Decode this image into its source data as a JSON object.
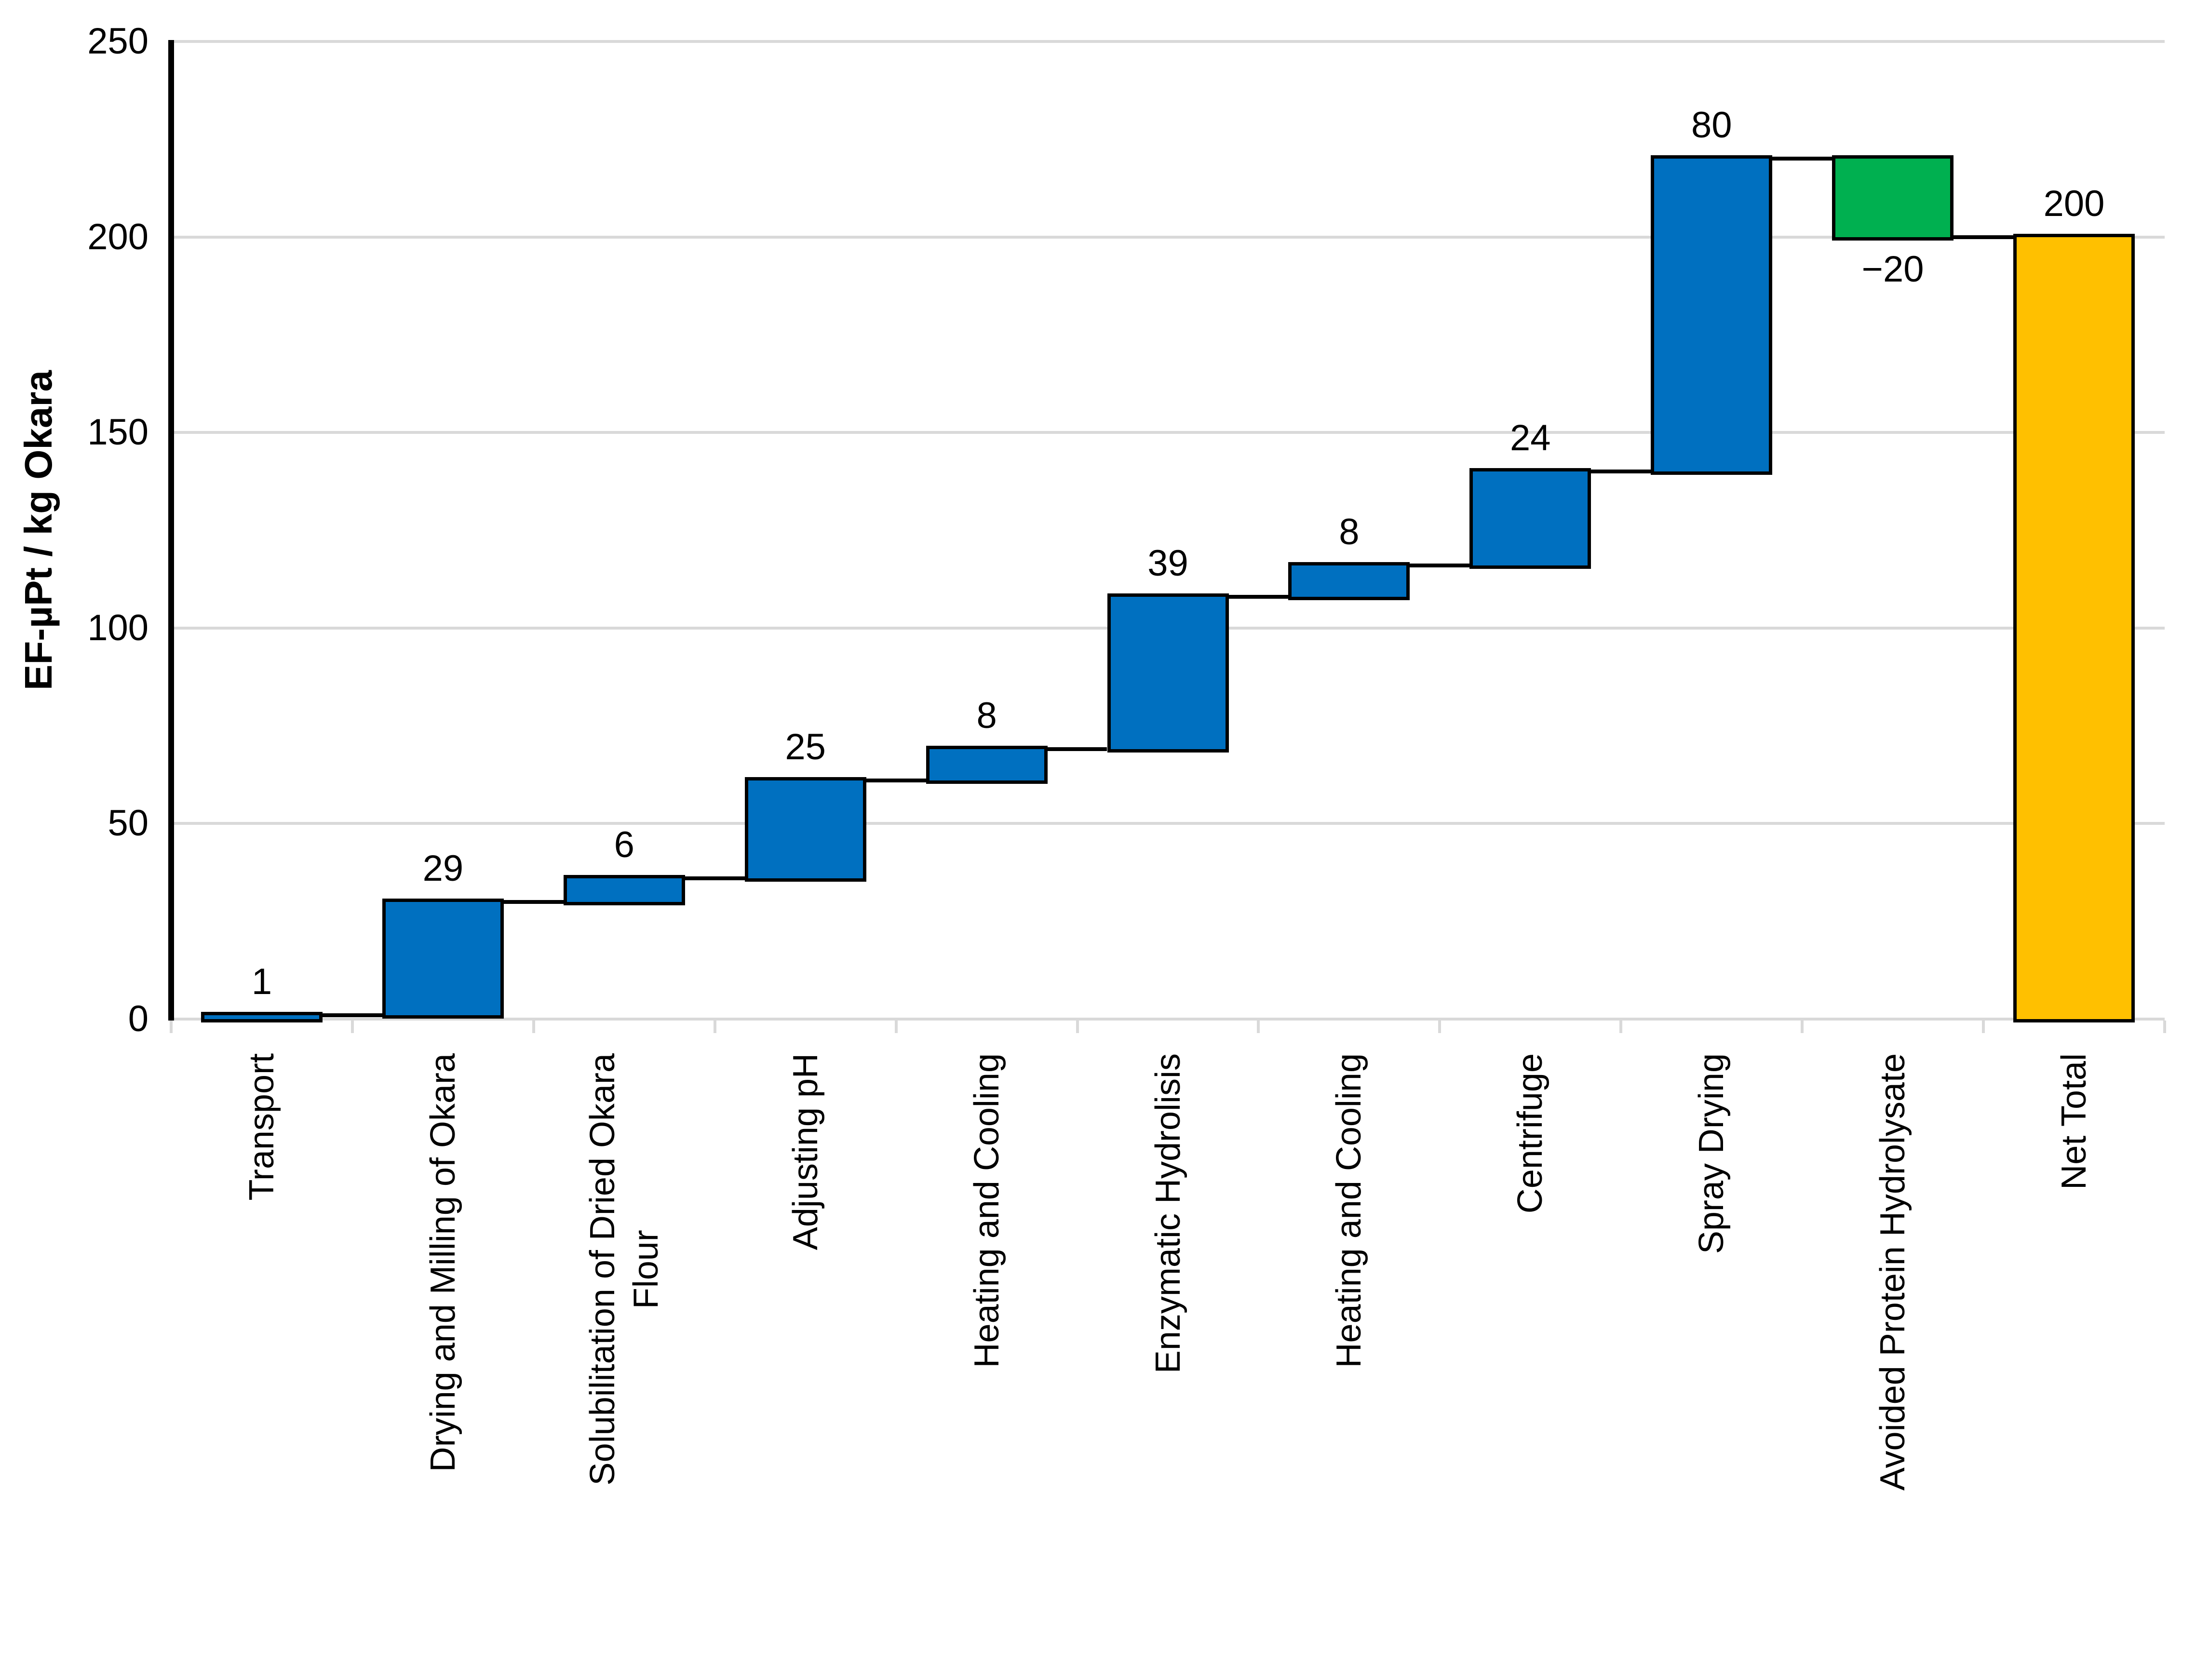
{
  "chart_data": {
    "type": "bar",
    "subtype": "waterfall",
    "ylabel": "EF-µPt / kg Okara",
    "ylim": [
      0,
      250
    ],
    "ytick_interval": 50,
    "yticks": [
      0,
      50,
      100,
      150,
      200,
      250
    ],
    "grid": true,
    "legend": false,
    "categories": [
      "Transport",
      "Drying and Milling of Okara",
      "Solubilitation of Dried Okara\nFlour",
      "Adjusting pH",
      "Heating and Cooling",
      "Enzymatic Hydrolisis",
      "Heating and Cooling",
      "Centrifuge",
      "Spray Drying",
      "Avoided Protein Hydrolysate",
      "Net Total"
    ],
    "values": [
      1,
      29,
      6,
      25,
      8,
      39,
      8,
      24,
      80,
      -20,
      200
    ],
    "value_labels": [
      "1",
      "29",
      "6",
      "25",
      "8",
      "39",
      "8",
      "24",
      "80",
      "−20",
      "200"
    ],
    "bar_kinds": [
      "increase",
      "increase",
      "increase",
      "increase",
      "increase",
      "increase",
      "increase",
      "increase",
      "increase",
      "decrease",
      "total"
    ],
    "colors": {
      "increase": "#0070C0",
      "decrease": "#00B050",
      "total": "#FFC000",
      "outline": "#000000",
      "gridline": "#D9D9D9",
      "background": "#FFFFFF",
      "text": "#000000"
    }
  }
}
